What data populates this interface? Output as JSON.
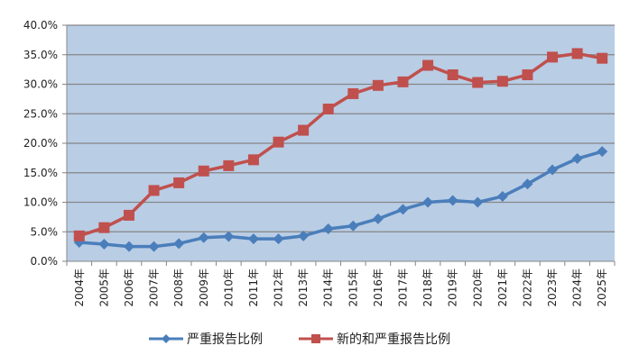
{
  "chart_data": {
    "type": "line",
    "title": "",
    "xlabel": "",
    "ylabel": "",
    "ylim": [
      0,
      40
    ],
    "y_ticks": [
      "0.0%",
      "5.0%",
      "10.0%",
      "15.0%",
      "20.0%",
      "25.0%",
      "30.0%",
      "35.0%",
      "40.0%"
    ],
    "grid": true,
    "legend_position": "bottom",
    "categories": [
      "2004年",
      "2005年",
      "2006年",
      "2007年",
      "2008年",
      "2009年",
      "2010年",
      "2011年",
      "2012年",
      "2013年",
      "2014年",
      "2015年",
      "2016年",
      "2017年",
      "2018年",
      "2019年",
      "2020年",
      "2021年",
      "2022年",
      "2023年",
      "2024年",
      "2025年"
    ],
    "series": [
      {
        "name": "严重报告比例",
        "color": "#4a7ebb",
        "marker": "diamond",
        "values": [
          3.2,
          2.9,
          2.5,
          2.5,
          3.0,
          4.0,
          4.2,
          3.8,
          3.8,
          4.3,
          5.5,
          6.0,
          7.2,
          8.8,
          10.0,
          10.3,
          10.0,
          11.0,
          13.1,
          15.5,
          17.4,
          18.6
        ]
      },
      {
        "name": "新的和严重报告比例",
        "color": "#c0504d",
        "marker": "square",
        "values": [
          4.3,
          5.7,
          7.8,
          12.0,
          13.3,
          15.3,
          16.2,
          17.2,
          20.2,
          22.2,
          25.8,
          28.4,
          29.8,
          30.4,
          33.2,
          31.6,
          30.3,
          30.5,
          31.6,
          34.6,
          35.2,
          34.4
        ]
      }
    ],
    "plot_background": "#b9cde5",
    "gridline_color": "#868686"
  },
  "legend": {
    "items": [
      {
        "label": "严重报告比例"
      },
      {
        "label": "新的和严重报告比例"
      }
    ]
  }
}
